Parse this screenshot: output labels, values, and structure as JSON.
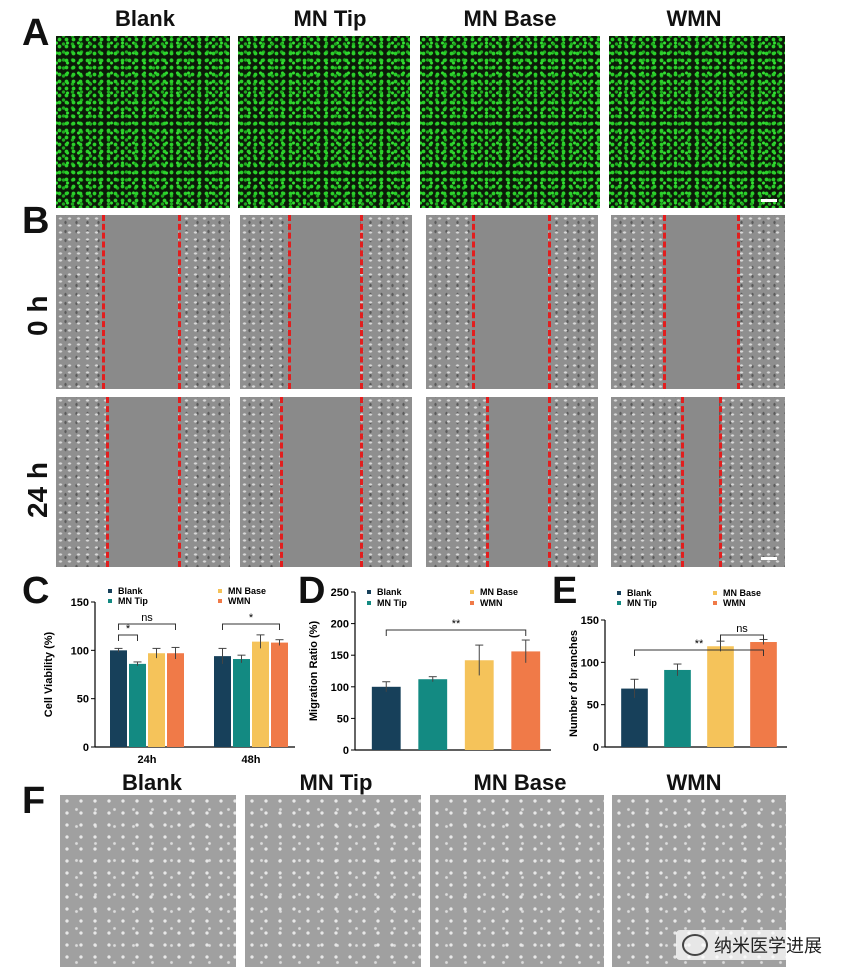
{
  "panel_labels": {
    "a": "A",
    "b": "B",
    "c": "C",
    "d": "D",
    "e": "E",
    "f": "F"
  },
  "groups": [
    "Blank",
    "MN Tip",
    "MN Base",
    "WMN"
  ],
  "panel_b": {
    "row_0": "0 h",
    "row_24": "24 h"
  },
  "chart_data": [
    {
      "type": "bar",
      "panel": "C",
      "ylabel": "Cell Viability (%)",
      "categories": [
        "24h",
        "48h"
      ],
      "series": [
        {
          "name": "Blank",
          "color": "#17405a",
          "values": [
            100,
            94
          ],
          "errors": [
            2,
            8
          ]
        },
        {
          "name": "MN Tip",
          "color": "#138a82",
          "values": [
            86,
            91
          ],
          "errors": [
            2,
            4
          ]
        },
        {
          "name": "MN Base",
          "color": "#f5c35a",
          "values": [
            97,
            109
          ],
          "errors": [
            5,
            7
          ]
        },
        {
          "name": "WMN",
          "color": "#f07a48",
          "values": [
            97,
            108
          ],
          "errors": [
            6,
            3
          ]
        }
      ],
      "ylim": [
        0,
        150
      ],
      "yticks": [
        "0",
        "50",
        "100",
        "150"
      ],
      "significance": [
        {
          "label": "*",
          "group": "24h",
          "from": "Blank",
          "to": "MN Tip"
        },
        {
          "label": "ns",
          "group": "24h",
          "from": "Blank",
          "to": "WMN"
        },
        {
          "label": "*",
          "group": "48h",
          "from": "Blank",
          "to": "WMN"
        }
      ]
    },
    {
      "type": "bar",
      "panel": "D",
      "ylabel": "Migration Ratio (%)",
      "categories": [
        "Blank",
        "MN Tip",
        "MN Base",
        "WMN"
      ],
      "values": [
        100,
        112,
        142,
        156
      ],
      "errors": [
        8,
        4,
        24,
        18
      ],
      "colors": [
        "#17405a",
        "#138a82",
        "#f5c35a",
        "#f07a48"
      ],
      "ylim": [
        0,
        250
      ],
      "yticks": [
        "0",
        "50",
        "100",
        "150",
        "200",
        "250"
      ],
      "significance": [
        {
          "label": "**",
          "from": "Blank",
          "to": "WMN"
        }
      ]
    },
    {
      "type": "bar",
      "panel": "E",
      "ylabel": "Number of branches",
      "categories": [
        "Blank",
        "MN Tip",
        "MN Base",
        "WMN"
      ],
      "values": [
        69,
        91,
        119,
        124
      ],
      "errors": [
        11,
        7,
        6,
        3
      ],
      "colors": [
        "#17405a",
        "#138a82",
        "#f5c35a",
        "#f07a48"
      ],
      "ylim": [
        0,
        150
      ],
      "yticks": [
        "0",
        "50",
        "100",
        "150"
      ],
      "significance": [
        {
          "label": "**",
          "from": "Blank",
          "to": "WMN"
        },
        {
          "label": "ns",
          "from": "MN Base",
          "to": "WMN"
        }
      ]
    }
  ],
  "watermark": "纳米医学进展"
}
